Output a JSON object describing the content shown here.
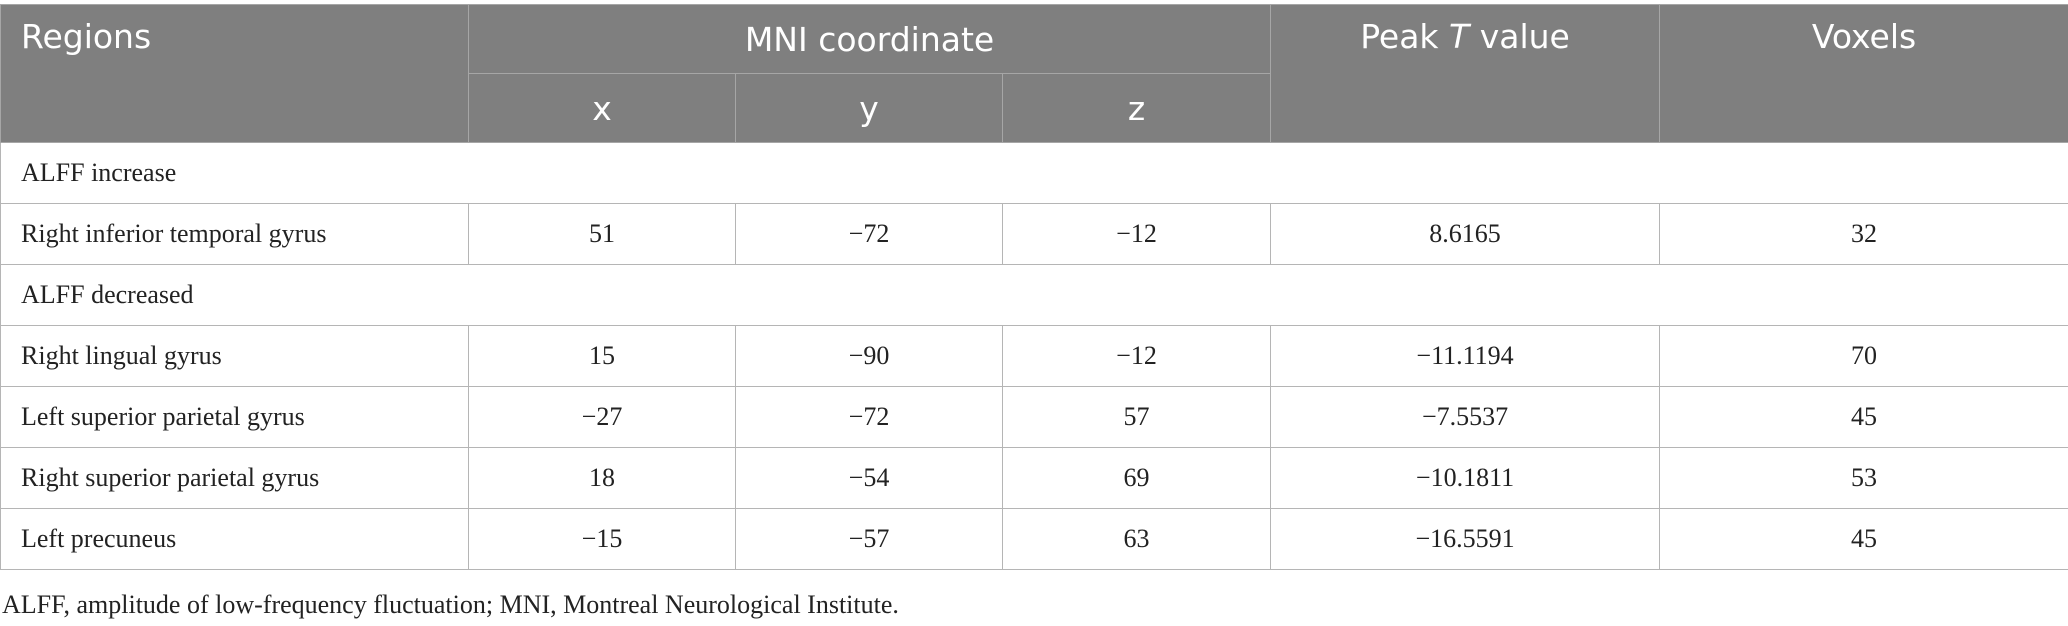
{
  "header": {
    "regions": "Regions",
    "mni": "MNI coordinate",
    "peak_t": {
      "prefix": "Peak",
      "italic": "T",
      "suffix": "value"
    },
    "voxels": "Voxels",
    "axes": [
      "x",
      "y",
      "z"
    ]
  },
  "sections": [
    {
      "label": "ALFF increase",
      "rows": [
        [
          "Right inferior temporal gyrus",
          "51",
          "−72",
          "−12",
          "8.6165",
          "32"
        ]
      ]
    },
    {
      "label": "ALFF decreased",
      "rows": [
        [
          "Right lingual gyrus",
          "15",
          "−90",
          "−12",
          "−11.1194",
          "70"
        ],
        [
          "Left superior parietal gyrus",
          "−27",
          "−72",
          "57",
          "−7.5537",
          "45"
        ],
        [
          "Right superior parietal gyrus",
          "18",
          "−54",
          "69",
          "−10.1811",
          "53"
        ],
        [
          "Left precuneus",
          "−15",
          "−57",
          "63",
          "−16.5591",
          "45"
        ]
      ]
    }
  ],
  "footnote": "ALFF, amplitude of low-frequency fluctuation; MNI, Montreal Neurological Institute."
}
